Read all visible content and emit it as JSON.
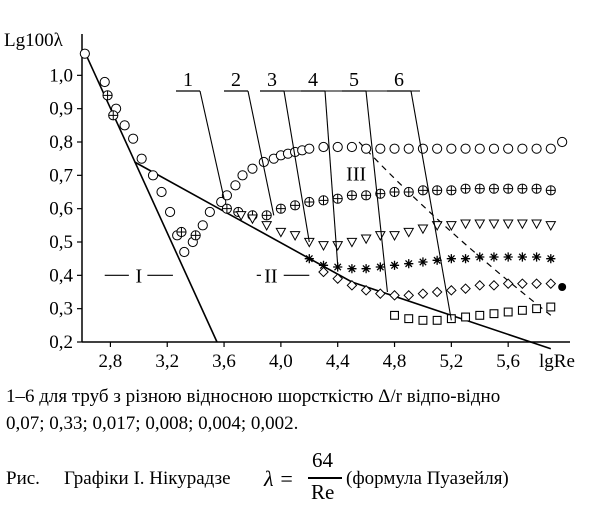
{
  "chart_data": {
    "type": "scatter",
    "ylabel": "Lg100λ",
    "xlabel": "lgRe",
    "xlim": [
      2.6,
      6.0
    ],
    "ylim": [
      0.2,
      1.1
    ],
    "x_ticks": [
      "2,8",
      "3,2",
      "3,6",
      "4,0",
      "4,4",
      "4,8",
      "5,2",
      "5,6"
    ],
    "y_ticks": [
      "0,2",
      "0,3",
      "0,4",
      "0,5",
      "0,6",
      "0,7",
      "0,8",
      "0,9",
      "1,0"
    ],
    "region_labels": [
      {
        "text": "I",
        "x": 3.0,
        "y": 0.4
      },
      {
        "text": "II",
        "x": 3.93,
        "y": 0.4
      },
      {
        "text": "III",
        "x": 4.53,
        "y": 0.705
      }
    ],
    "curve_labels": [
      "1",
      "2",
      "3",
      "4",
      "5",
      "6"
    ],
    "series": [
      {
        "values": [
          [
            2.62,
            1.065
          ],
          [
            2.76,
            0.98
          ],
          [
            2.84,
            0.9
          ],
          [
            2.9,
            0.85
          ],
          [
            2.96,
            0.81
          ],
          [
            3.02,
            0.75
          ],
          [
            3.1,
            0.7
          ],
          [
            3.16,
            0.65
          ],
          [
            3.22,
            0.59
          ],
          [
            3.27,
            0.52
          ],
          [
            3.32,
            0.47
          ],
          [
            3.38,
            0.5
          ],
          [
            3.45,
            0.55
          ],
          [
            3.5,
            0.59
          ],
          [
            3.58,
            0.62
          ],
          [
            3.62,
            0.64
          ],
          [
            3.68,
            0.67
          ],
          [
            3.73,
            0.7
          ],
          [
            3.8,
            0.72
          ],
          [
            3.88,
            0.74
          ],
          [
            3.95,
            0.75
          ],
          [
            4.0,
            0.76
          ],
          [
            4.05,
            0.765
          ],
          [
            4.1,
            0.77
          ],
          [
            4.15,
            0.775
          ],
          [
            4.2,
            0.78
          ],
          [
            4.3,
            0.785
          ],
          [
            4.4,
            0.785
          ],
          [
            4.5,
            0.785
          ],
          [
            4.6,
            0.78
          ],
          [
            4.7,
            0.78
          ],
          [
            4.8,
            0.78
          ],
          [
            4.9,
            0.78
          ],
          [
            5.0,
            0.78
          ],
          [
            5.1,
            0.78
          ],
          [
            5.2,
            0.78
          ],
          [
            5.3,
            0.78
          ],
          [
            5.4,
            0.78
          ],
          [
            5.5,
            0.78
          ],
          [
            5.6,
            0.78
          ],
          [
            5.7,
            0.78
          ],
          [
            5.8,
            0.78
          ],
          [
            5.9,
            0.78
          ],
          [
            5.98,
            0.8
          ]
        ]
      },
      {
        "values": [
          [
            2.78,
            0.94
          ],
          [
            2.82,
            0.88
          ],
          [
            3.3,
            0.53
          ],
          [
            3.4,
            0.52
          ],
          [
            3.62,
            0.6
          ],
          [
            3.7,
            0.59
          ],
          [
            3.8,
            0.58
          ],
          [
            3.9,
            0.58
          ],
          [
            4.0,
            0.6
          ],
          [
            4.1,
            0.61
          ],
          [
            4.2,
            0.62
          ],
          [
            4.3,
            0.625
          ],
          [
            4.4,
            0.63
          ],
          [
            4.5,
            0.64
          ],
          [
            4.6,
            0.64
          ],
          [
            4.7,
            0.645
          ],
          [
            4.8,
            0.65
          ],
          [
            4.9,
            0.65
          ],
          [
            5.0,
            0.655
          ],
          [
            5.1,
            0.655
          ],
          [
            5.2,
            0.655
          ],
          [
            5.3,
            0.66
          ],
          [
            5.4,
            0.66
          ],
          [
            5.5,
            0.66
          ],
          [
            5.6,
            0.66
          ],
          [
            5.7,
            0.66
          ],
          [
            5.8,
            0.66
          ],
          [
            5.9,
            0.655
          ]
        ]
      },
      {
        "values": [
          [
            3.72,
            0.58
          ],
          [
            3.8,
            0.57
          ],
          [
            3.9,
            0.55
          ],
          [
            4.0,
            0.53
          ],
          [
            4.1,
            0.52
          ],
          [
            4.2,
            0.5
          ],
          [
            4.3,
            0.49
          ],
          [
            4.4,
            0.49
          ],
          [
            4.5,
            0.5
          ],
          [
            4.6,
            0.51
          ],
          [
            4.7,
            0.52
          ],
          [
            4.8,
            0.52
          ],
          [
            4.9,
            0.53
          ],
          [
            5.0,
            0.54
          ],
          [
            5.1,
            0.55
          ],
          [
            5.2,
            0.55
          ],
          [
            5.3,
            0.555
          ],
          [
            5.4,
            0.555
          ],
          [
            5.5,
            0.555
          ],
          [
            5.6,
            0.555
          ],
          [
            5.7,
            0.555
          ],
          [
            5.8,
            0.555
          ],
          [
            5.9,
            0.55
          ]
        ]
      },
      {
        "values": [
          [
            4.2,
            0.45
          ],
          [
            4.3,
            0.43
          ],
          [
            4.4,
            0.425
          ],
          [
            4.5,
            0.42
          ],
          [
            4.6,
            0.42
          ],
          [
            4.7,
            0.425
          ],
          [
            4.8,
            0.43
          ],
          [
            4.9,
            0.435
          ],
          [
            5.0,
            0.44
          ],
          [
            5.1,
            0.445
          ],
          [
            5.2,
            0.45
          ],
          [
            5.3,
            0.45
          ],
          [
            5.4,
            0.455
          ],
          [
            5.5,
            0.455
          ],
          [
            5.6,
            0.455
          ],
          [
            5.7,
            0.455
          ],
          [
            5.8,
            0.455
          ],
          [
            5.9,
            0.45
          ]
        ]
      },
      {
        "values": [
          [
            4.3,
            0.41
          ],
          [
            4.4,
            0.39
          ],
          [
            4.5,
            0.37
          ],
          [
            4.6,
            0.355
          ],
          [
            4.7,
            0.345
          ],
          [
            4.8,
            0.34
          ],
          [
            4.9,
            0.34
          ],
          [
            5.0,
            0.345
          ],
          [
            5.1,
            0.35
          ],
          [
            5.2,
            0.355
          ],
          [
            5.3,
            0.36
          ],
          [
            5.4,
            0.37
          ],
          [
            5.5,
            0.37
          ],
          [
            5.6,
            0.375
          ],
          [
            5.7,
            0.375
          ],
          [
            5.8,
            0.375
          ],
          [
            5.9,
            0.375
          ]
        ]
      },
      {
        "values": [
          [
            4.8,
            0.28
          ],
          [
            4.9,
            0.27
          ],
          [
            5.0,
            0.265
          ],
          [
            5.1,
            0.265
          ],
          [
            5.2,
            0.27
          ],
          [
            5.3,
            0.275
          ],
          [
            5.4,
            0.28
          ],
          [
            5.5,
            0.285
          ],
          [
            5.6,
            0.29
          ],
          [
            5.7,
            0.295
          ],
          [
            5.8,
            0.3
          ],
          [
            5.9,
            0.305
          ]
        ]
      }
    ],
    "lines": [
      {
        "name": "I",
        "points": [
          [
            2.63,
            1.06
          ],
          [
            3.55,
            0.2
          ]
        ]
      },
      {
        "name": "II",
        "points": [
          [
            2.97,
            0.74
          ],
          [
            4.5,
            0.38
          ],
          [
            5.9,
            0.18
          ]
        ]
      }
    ]
  },
  "caption": {
    "line1": "1–6 для труб з різною відносною шорсткістю Δ/r  відпо-відно",
    "line2": "0,07; 0,33; 0,017; 0,008; 0,004; 0,002."
  },
  "figure": {
    "prefix": "Рис.",
    "title": "Графіки І. Нікурадзе",
    "lambda": "λ =",
    "numerator": "64",
    "denominator": "Re",
    "suffix": "(формула Пуазейля)"
  }
}
